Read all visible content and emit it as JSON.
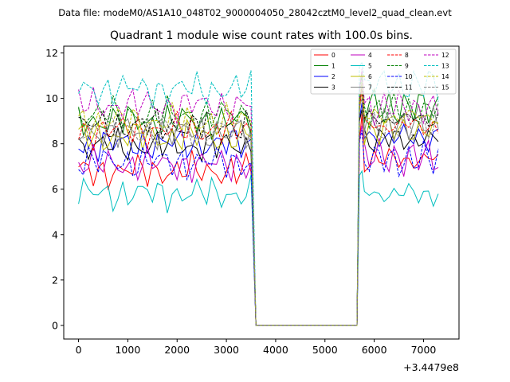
{
  "chart_data": {
    "type": "line",
    "suptitle": "Data file: modeM0/AS1A10_048T02_9000004050_28042cztM0_level2_quad_clean.evt",
    "title": "Quadrant 1 module wise count rates with 100.0s bins.",
    "xlabel": "",
    "ylabel": "",
    "x_offset_label": "+3.4479e8",
    "xlim": [
      -300,
      7720
    ],
    "ylim": [
      -0.6,
      12.3
    ],
    "x_ticks": [
      0,
      1000,
      2000,
      3000,
      4000,
      5000,
      6000,
      7000
    ],
    "y_ticks": [
      0,
      2,
      4,
      6,
      8,
      10,
      12
    ],
    "x_tick_labels": [
      "0",
      "1000",
      "2000",
      "3000",
      "4000",
      "5000",
      "6000",
      "7000"
    ],
    "y_tick_labels": [
      "0",
      "2",
      "4",
      "6",
      "8",
      "10",
      "12"
    ],
    "legend_position": "top-right",
    "gap": {
      "start": 3600,
      "end": 5650,
      "value": 0
    },
    "segment1": {
      "x_start": 0,
      "x_end": 3500,
      "step": 100
    },
    "segment2": {
      "x_start": 5700,
      "x_end": 7300,
      "step": 100
    },
    "series": [
      {
        "name": "0",
        "color": "#ff0000",
        "dashed": false,
        "level1": 6.8,
        "level2": 7.3,
        "peak": 9.3
      },
      {
        "name": "1",
        "color": "#008000",
        "dashed": false,
        "level1": 9.0,
        "level2": 9.6,
        "peak": 11.2
      },
      {
        "name": "2",
        "color": "#0000ff",
        "dashed": false,
        "level1": 8.0,
        "level2": 8.3,
        "peak": 9.8
      },
      {
        "name": "3",
        "color": "#000000",
        "dashed": false,
        "level1": 7.9,
        "level2": 8.2,
        "peak": 9.5
      },
      {
        "name": "4",
        "color": "#bf00bf",
        "dashed": false,
        "level1": 7.1,
        "level2": 7.4,
        "peak": 8.8
      },
      {
        "name": "5",
        "color": "#00bfbf",
        "dashed": false,
        "level1": 5.8,
        "level2": 5.8,
        "peak": 6.8
      },
      {
        "name": "6",
        "color": "#bfbf00",
        "dashed": false,
        "level1": 8.3,
        "level2": 8.6,
        "peak": 10.5
      },
      {
        "name": "7",
        "color": "#808080",
        "dashed": false,
        "level1": 8.5,
        "level2": 8.9,
        "peak": 10.9
      },
      {
        "name": "8",
        "color": "#ff0000",
        "dashed": true,
        "level1": 8.6,
        "level2": 8.8,
        "peak": 10.4
      },
      {
        "name": "9",
        "color": "#008000",
        "dashed": true,
        "level1": 9.3,
        "level2": 9.5,
        "peak": 11.0
      },
      {
        "name": "10",
        "color": "#0000ff",
        "dashed": true,
        "level1": 7.2,
        "level2": 7.3,
        "peak": 8.6
      },
      {
        "name": "11",
        "color": "#000000",
        "dashed": true,
        "level1": 8.8,
        "level2": 9.1,
        "peak": 10.6
      },
      {
        "name": "12",
        "color": "#bf00bf",
        "dashed": true,
        "level1": 9.7,
        "level2": 9.6,
        "peak": 11.3
      },
      {
        "name": "13",
        "color": "#00bfbf",
        "dashed": true,
        "level1": 10.4,
        "level2": 10.6,
        "peak": 11.6
      },
      {
        "name": "14",
        "color": "#bfbf00",
        "dashed": true,
        "level1": 9.0,
        "level2": 9.2,
        "peak": 10.7
      },
      {
        "name": "15",
        "color": "#808080",
        "dashed": true,
        "level1": 8.6,
        "level2": 8.8,
        "peak": 10.0
      }
    ]
  }
}
